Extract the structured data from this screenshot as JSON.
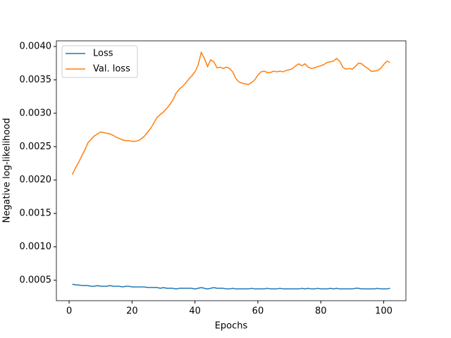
{
  "chart_data": {
    "type": "line",
    "x_label": "Epochs",
    "y_label": "Negative log-likelihood",
    "x": [
      1,
      2,
      3,
      4,
      5,
      6,
      7,
      8,
      9,
      10,
      11,
      12,
      13,
      14,
      15,
      16,
      17,
      18,
      19,
      20,
      21,
      22,
      23,
      24,
      25,
      26,
      27,
      28,
      29,
      30,
      31,
      32,
      33,
      34,
      35,
      36,
      37,
      38,
      39,
      40,
      41,
      42,
      43,
      44,
      45,
      46,
      47,
      48,
      49,
      50,
      51,
      52,
      53,
      54,
      55,
      56,
      57,
      58,
      59,
      60,
      61,
      62,
      63,
      64,
      65,
      66,
      67,
      68,
      69,
      70,
      71,
      72,
      73,
      74,
      75,
      76,
      77,
      78,
      79,
      80,
      81,
      82,
      83,
      84,
      85,
      86,
      87,
      88,
      89,
      90,
      91,
      92,
      93,
      94,
      95,
      96,
      97,
      98,
      99,
      100,
      101,
      102
    ],
    "series": [
      {
        "name": "Loss",
        "color": "#1f77b4",
        "values": [
          0.00044,
          0.00043,
          0.00043,
          0.00042,
          0.00042,
          0.00042,
          0.00041,
          0.00041,
          0.00042,
          0.00041,
          0.00041,
          0.00041,
          0.00042,
          0.00041,
          0.00041,
          0.00041,
          0.0004,
          0.00041,
          0.00041,
          0.0004,
          0.0004,
          0.0004,
          0.0004,
          0.0004,
          0.00039,
          0.00039,
          0.00039,
          0.00039,
          0.00038,
          0.00039,
          0.00038,
          0.00038,
          0.00038,
          0.00037,
          0.00038,
          0.00038,
          0.00038,
          0.00038,
          0.00038,
          0.00037,
          0.00038,
          0.00039,
          0.00038,
          0.00037,
          0.00038,
          0.00039,
          0.00038,
          0.00038,
          0.00038,
          0.00037,
          0.00037,
          0.00038,
          0.00037,
          0.00037,
          0.00037,
          0.00037,
          0.00037,
          0.00038,
          0.00037,
          0.00037,
          0.00037,
          0.00037,
          0.00038,
          0.00037,
          0.00037,
          0.00037,
          0.00038,
          0.00037,
          0.00037,
          0.00037,
          0.00037,
          0.00037,
          0.00037,
          0.00038,
          0.00037,
          0.00038,
          0.00037,
          0.00037,
          0.00038,
          0.00037,
          0.00037,
          0.00037,
          0.00038,
          0.00037,
          0.00038,
          0.00037,
          0.00037,
          0.00037,
          0.00037,
          0.00037,
          0.00038,
          0.00038,
          0.00037,
          0.00037,
          0.00037,
          0.00037,
          0.00037,
          0.00038,
          0.00037,
          0.00037,
          0.00037,
          0.00038
        ]
      },
      {
        "name": "Val. loss",
        "color": "#ff7f0e",
        "values": [
          0.00208,
          0.00218,
          0.00226,
          0.00236,
          0.00245,
          0.00256,
          0.00261,
          0.00266,
          0.00269,
          0.00272,
          0.00271,
          0.0027,
          0.00269,
          0.00267,
          0.00264,
          0.00262,
          0.0026,
          0.00259,
          0.00259,
          0.00258,
          0.00258,
          0.00259,
          0.00262,
          0.00266,
          0.00272,
          0.00278,
          0.00286,
          0.00294,
          0.00298,
          0.00302,
          0.00307,
          0.00313,
          0.0032,
          0.0033,
          0.00336,
          0.0034,
          0.00345,
          0.00351,
          0.00356,
          0.00362,
          0.00372,
          0.00391,
          0.00382,
          0.0037,
          0.0038,
          0.00377,
          0.00368,
          0.00369,
          0.00367,
          0.00369,
          0.00367,
          0.00362,
          0.00352,
          0.00347,
          0.00345,
          0.00344,
          0.00343,
          0.00346,
          0.0035,
          0.00357,
          0.00362,
          0.00363,
          0.00361,
          0.00361,
          0.00363,
          0.00362,
          0.00363,
          0.00362,
          0.00364,
          0.00365,
          0.00367,
          0.00371,
          0.00374,
          0.00371,
          0.00374,
          0.00369,
          0.00367,
          0.00368,
          0.0037,
          0.00371,
          0.00373,
          0.00376,
          0.00377,
          0.00378,
          0.00382,
          0.00378,
          0.00369,
          0.00366,
          0.00367,
          0.00366,
          0.0037,
          0.00375,
          0.00374,
          0.0037,
          0.00367,
          0.00363,
          0.00363,
          0.00364,
          0.00367,
          0.00373,
          0.00378,
          0.00376
        ]
      }
    ],
    "xlim": [
      -4.05,
      107.05
    ],
    "xticks": [
      0,
      20,
      40,
      60,
      80,
      100
    ],
    "ylim": [
      0.000194,
      0.004084
    ],
    "yticks": [
      {
        "value": 0.0005,
        "label": "0.0005"
      },
      {
        "value": 0.001,
        "label": "0.0010"
      },
      {
        "value": 0.0015,
        "label": "0.0015"
      },
      {
        "value": 0.002,
        "label": "0.0020"
      },
      {
        "value": 0.0025,
        "label": "0.0025"
      },
      {
        "value": 0.003,
        "label": "0.0030"
      },
      {
        "value": 0.0035,
        "label": "0.0035"
      },
      {
        "value": 0.004,
        "label": "0.0040"
      }
    ],
    "legend": "upper left"
  }
}
